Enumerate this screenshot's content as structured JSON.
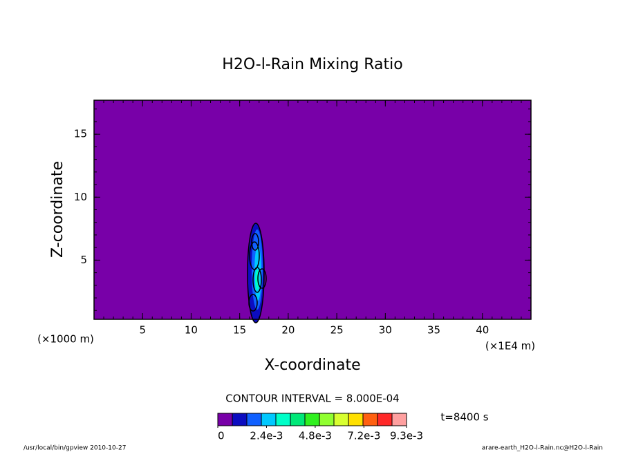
{
  "chart_data": {
    "type": "contour",
    "title": "H2O-l-Rain Mixing Ratio",
    "x_label": "X-coordinate",
    "y_label": "Z-coordinate",
    "x_unit": "(×1E4 m)",
    "y_unit": "(×1000 m)",
    "xlim": [
      0,
      45
    ],
    "ylim": [
      0.3,
      17.7
    ],
    "xticks": [
      5,
      10,
      15,
      20,
      25,
      30,
      35,
      40
    ],
    "yticks": [
      5,
      10,
      15
    ],
    "background_color": "#7800a8",
    "contour_interval_text": "CONTOUR INTERVAL = 8.000E-04",
    "time_text": "t=8400 s",
    "colorbar": {
      "clim": [
        0,
        0.0093
      ],
      "colors": [
        "#7800a8",
        "#0c0cc0",
        "#1060ff",
        "#00c8ff",
        "#00ffc8",
        "#00e878",
        "#30f020",
        "#90ff30",
        "#d8ff30",
        "#ffe000",
        "#ff6010",
        "#ff2828",
        "#ffa0a0"
      ],
      "ticks": [
        {
          "value": 0,
          "label": "0"
        },
        {
          "value": 0.0024,
          "label": "2.4e-3"
        },
        {
          "value": 0.0048,
          "label": "4.8e-3"
        },
        {
          "value": 0.0072,
          "label": "7.2e-3"
        },
        {
          "value": 0.0093,
          "label": "9.3e-3"
        }
      ]
    },
    "footer_left": "/usr/local/bin/gpview  2010-10-27",
    "footer_right": "arare-earth_H2O-l-Rain.nc@H2O-l-Rain"
  }
}
